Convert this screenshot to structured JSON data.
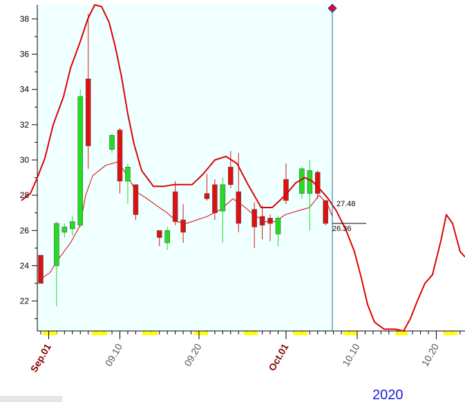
{
  "chart_data": {
    "type": "candlestick",
    "year_label": "2020",
    "ylim": [
      20.3,
      38.8
    ],
    "y_ticks": [
      22,
      24,
      26,
      28,
      30,
      32,
      34,
      36,
      38
    ],
    "x_ticks": [
      {
        "label": "Sep.01",
        "day": 1,
        "month_start": true
      },
      {
        "label": "09.10",
        "day": 10,
        "month_start": false
      },
      {
        "label": "09.20",
        "day": 20,
        "month_start": false
      },
      {
        "label": "Oct.01",
        "day": 31,
        "month_start": true
      },
      {
        "label": "10.10",
        "day": 40,
        "month_start": false
      },
      {
        "label": "10.20",
        "day": 50,
        "month_start": false
      }
    ],
    "price_labels": [
      "27.48",
      "26.36"
    ],
    "colors": {
      "up": "#22dd22",
      "down": "#dd1111",
      "line": "#dd0000",
      "cursor": "#1a6b8a",
      "plot_bg": "#f0ffff"
    },
    "candles": [
      {
        "date": "08-31",
        "open": 24.6,
        "high": 24.6,
        "low": 23.0,
        "close": 23.0
      },
      {
        "date": "09-02",
        "open": 24.0,
        "high": 26.5,
        "low": 21.7,
        "close": 26.4
      },
      {
        "date": "09-03",
        "open": 25.9,
        "high": 26.4,
        "low": 25.6,
        "close": 26.2
      },
      {
        "date": "09-04",
        "open": 26.1,
        "high": 26.8,
        "low": 25.7,
        "close": 26.5
      },
      {
        "date": "09-05",
        "open": 26.3,
        "high": 34.0,
        "low": 26.2,
        "close": 33.6
      },
      {
        "date": "09-06",
        "open": 34.6,
        "high": 38.3,
        "low": 29.5,
        "close": 30.8
      },
      {
        "date": "09-09",
        "open": 30.6,
        "high": 31.5,
        "low": 30.4,
        "close": 31.4
      },
      {
        "date": "09-10",
        "open": 31.7,
        "high": 31.8,
        "low": 28.1,
        "close": 28.8
      },
      {
        "date": "09-11",
        "open": 28.8,
        "high": 29.8,
        "low": 27.5,
        "close": 29.6
      },
      {
        "date": "09-12",
        "open": 28.6,
        "high": 28.6,
        "low": 26.6,
        "close": 26.9
      },
      {
        "date": "09-15",
        "open": 26.0,
        "high": 26.0,
        "low": 25.1,
        "close": 25.6
      },
      {
        "date": "09-16",
        "open": 25.3,
        "high": 26.2,
        "low": 24.9,
        "close": 26.0
      },
      {
        "date": "09-17",
        "open": 28.2,
        "high": 28.8,
        "low": 26.3,
        "close": 26.5
      },
      {
        "date": "09-18",
        "open": 26.6,
        "high": 27.5,
        "low": 25.3,
        "close": 25.9
      },
      {
        "date": "09-21",
        "open": 28.1,
        "high": 29.2,
        "low": 27.7,
        "close": 27.8
      },
      {
        "date": "09-22",
        "open": 28.6,
        "high": 28.9,
        "low": 26.6,
        "close": 27.0
      },
      {
        "date": "09-23",
        "open": 27.1,
        "high": 29.0,
        "low": 25.3,
        "close": 28.6
      },
      {
        "date": "09-24",
        "open": 29.6,
        "high": 30.5,
        "low": 28.4,
        "close": 28.6
      },
      {
        "date": "09-25",
        "open": 28.2,
        "high": 30.4,
        "low": 25.9,
        "close": 26.4
      },
      {
        "date": "09-27",
        "open": 27.2,
        "high": 27.6,
        "low": 25.0,
        "close": 26.2
      },
      {
        "date": "09-28",
        "open": 26.8,
        "high": 27.4,
        "low": 25.5,
        "close": 26.3
      },
      {
        "date": "09-29",
        "open": 26.7,
        "high": 26.9,
        "low": 25.4,
        "close": 26.4
      },
      {
        "date": "09-30",
        "open": 25.8,
        "high": 26.8,
        "low": 25.1,
        "close": 26.7
      },
      {
        "date": "10-01",
        "open": 28.9,
        "high": 29.8,
        "low": 27.5,
        "close": 27.7
      },
      {
        "date": "10-03",
        "open": 28.1,
        "high": 29.6,
        "low": 27.8,
        "close": 29.5
      },
      {
        "date": "10-04",
        "open": 28.1,
        "high": 30.0,
        "low": 26.0,
        "close": 29.4
      },
      {
        "date": "10-05",
        "open": 29.3,
        "high": 29.4,
        "low": 27.8,
        "close": 28.1
      },
      {
        "date": "10-06",
        "open": 27.7,
        "high": 27.7,
        "low": 26.3,
        "close": 26.4
      }
    ],
    "upper_curve": [
      {
        "x": 31,
        "y": 27.7
      },
      {
        "x": 44,
        "y": 28.1
      },
      {
        "x": 53,
        "y": 28.9
      },
      {
        "x": 65,
        "y": 30.1
      },
      {
        "x": 77,
        "y": 32.0
      },
      {
        "x": 92,
        "y": 33.6
      },
      {
        "x": 102,
        "y": 35.2
      },
      {
        "x": 116,
        "y": 36.7
      },
      {
        "x": 127,
        "y": 38.0
      },
      {
        "x": 137,
        "y": 38.8
      },
      {
        "x": 147,
        "y": 38.7
      },
      {
        "x": 158,
        "y": 37.8
      },
      {
        "x": 167,
        "y": 36.4
      },
      {
        "x": 176,
        "y": 34.7
      },
      {
        "x": 185,
        "y": 32.6
      },
      {
        "x": 194,
        "y": 30.9
      },
      {
        "x": 205,
        "y": 29.4
      },
      {
        "x": 222,
        "y": 28.5
      },
      {
        "x": 237,
        "y": 28.5
      },
      {
        "x": 251,
        "y": 28.6
      },
      {
        "x": 265,
        "y": 28.6
      },
      {
        "x": 278,
        "y": 28.6
      },
      {
        "x": 294,
        "y": 29.2
      },
      {
        "x": 311,
        "y": 30.0
      },
      {
        "x": 327,
        "y": 30.2
      },
      {
        "x": 343,
        "y": 29.8
      },
      {
        "x": 359,
        "y": 28.6
      },
      {
        "x": 378,
        "y": 27.3
      },
      {
        "x": 394,
        "y": 27.3
      },
      {
        "x": 413,
        "y": 28.0
      },
      {
        "x": 428,
        "y": 28.7
      },
      {
        "x": 441,
        "y": 29.0
      },
      {
        "x": 452,
        "y": 28.8
      },
      {
        "x": 464,
        "y": 28.3
      },
      {
        "x": 475,
        "y": 27.8
      },
      {
        "x": 487,
        "y": 27.1
      },
      {
        "x": 501,
        "y": 26.0
      },
      {
        "x": 513,
        "y": 24.8
      },
      {
        "x": 523,
        "y": 23.3
      },
      {
        "x": 532,
        "y": 21.8
      },
      {
        "x": 542,
        "y": 20.8
      },
      {
        "x": 556,
        "y": 20.4
      },
      {
        "x": 572,
        "y": 20.4
      },
      {
        "x": 584,
        "y": 20.3
      },
      {
        "x": 594,
        "y": 21.0
      },
      {
        "x": 604,
        "y": 22.0
      },
      {
        "x": 615,
        "y": 23.0
      },
      {
        "x": 626,
        "y": 23.5
      },
      {
        "x": 638,
        "y": 25.4
      },
      {
        "x": 646,
        "y": 26.9
      },
      {
        "x": 655,
        "y": 26.4
      },
      {
        "x": 666,
        "y": 24.8
      },
      {
        "x": 673,
        "y": 24.5
      }
    ],
    "lower_curve": [
      {
        "x": 57,
        "y": 23.2
      },
      {
        "x": 72,
        "y": 23.6
      },
      {
        "x": 85,
        "y": 24.4
      },
      {
        "x": 102,
        "y": 25.3
      },
      {
        "x": 116,
        "y": 26.3
      },
      {
        "x": 124,
        "y": 28.0
      },
      {
        "x": 134,
        "y": 29.1
      },
      {
        "x": 153,
        "y": 29.7
      },
      {
        "x": 171,
        "y": 29.9
      },
      {
        "x": 186,
        "y": 29.0
      },
      {
        "x": 197,
        "y": 28.2
      },
      {
        "x": 213,
        "y": 27.8
      },
      {
        "x": 227,
        "y": 27.4
      },
      {
        "x": 242,
        "y": 27.0
      },
      {
        "x": 256,
        "y": 26.5
      },
      {
        "x": 270,
        "y": 26.4
      },
      {
        "x": 285,
        "y": 26.6
      },
      {
        "x": 300,
        "y": 26.8
      },
      {
        "x": 320,
        "y": 27.2
      },
      {
        "x": 337,
        "y": 27.8
      },
      {
        "x": 352,
        "y": 27.4
      },
      {
        "x": 367,
        "y": 26.9
      },
      {
        "x": 384,
        "y": 26.5
      },
      {
        "x": 398,
        "y": 26.5
      },
      {
        "x": 413,
        "y": 26.9
      },
      {
        "x": 430,
        "y": 27.1
      },
      {
        "x": 448,
        "y": 27.3
      },
      {
        "x": 462,
        "y": 28.0
      },
      {
        "x": 474,
        "y": 27.5
      },
      {
        "x": 481,
        "y": 26.8
      }
    ]
  }
}
